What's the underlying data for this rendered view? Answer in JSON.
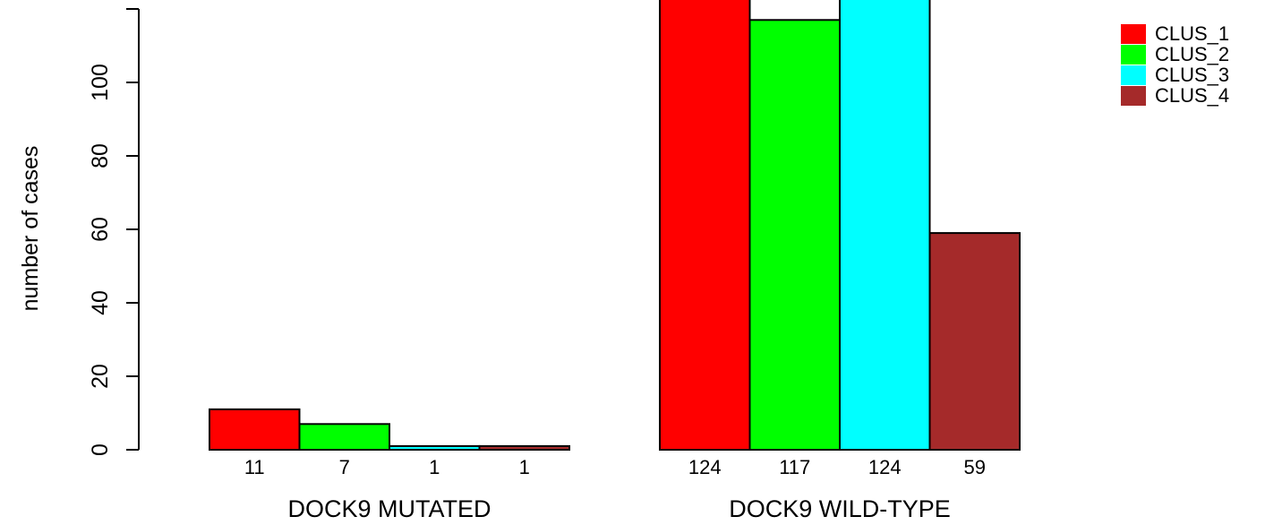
{
  "chart_data": {
    "type": "bar",
    "title": "",
    "xlabel": "",
    "ylabel": "number of cases",
    "ylim": [
      0,
      124
    ],
    "yticks": [
      0,
      20,
      40,
      60,
      80,
      100
    ],
    "grid": false,
    "legend_position": "top-right",
    "groups": [
      {
        "label": "DOCK9 MUTATED",
        "values": [
          11,
          7,
          1,
          1
        ],
        "value_labels": [
          "11",
          "7",
          "1",
          "1"
        ]
      },
      {
        "label": "DOCK9 WILD-TYPE",
        "values": [
          124,
          117,
          124,
          59
        ],
        "value_labels": [
          "124",
          "117",
          "124",
          "59"
        ]
      }
    ],
    "series": [
      {
        "name": "CLUS_1",
        "color": "#ff0000"
      },
      {
        "name": "CLUS_2",
        "color": "#00ff00"
      },
      {
        "name": "CLUS_3",
        "color": "#00ffff"
      },
      {
        "name": "CLUS_4",
        "color": "#a52a2a"
      }
    ]
  }
}
